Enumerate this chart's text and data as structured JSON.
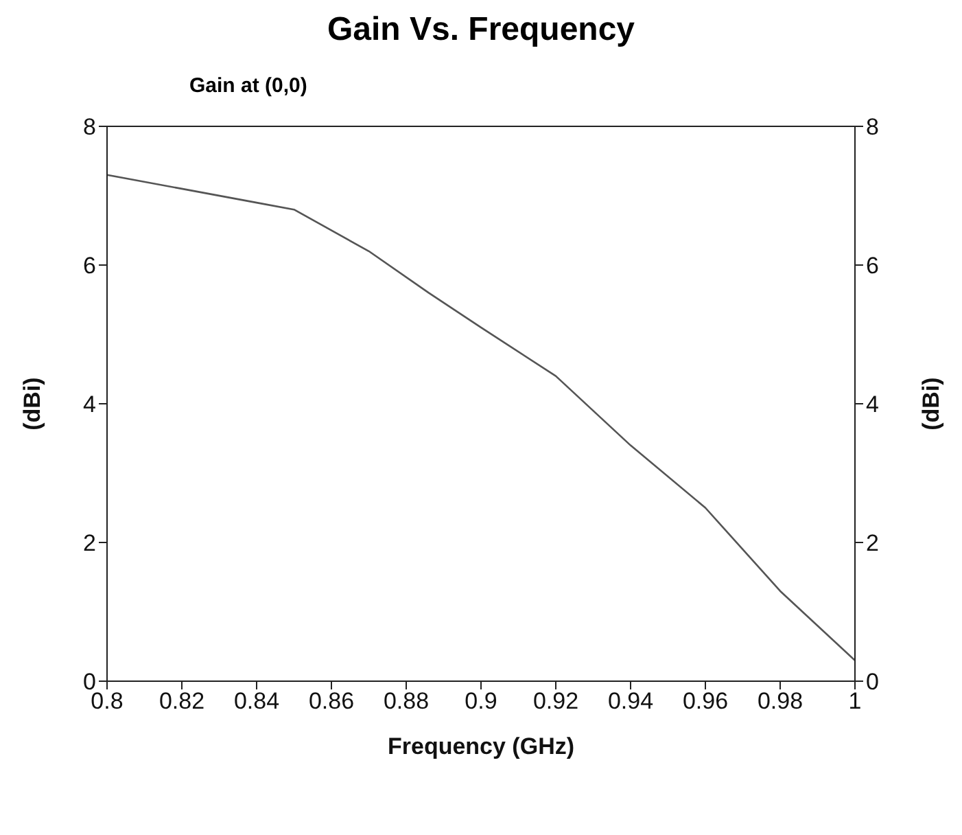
{
  "chart_data": {
    "type": "line",
    "title": "Gain Vs. Frequency",
    "subtitle": "Gain at (0,0)",
    "xlabel": "Frequency (GHz)",
    "ylabel": "(dBi)",
    "y2label": "(dBi)",
    "x": [
      0.8,
      0.82,
      0.84,
      0.85,
      0.87,
      0.886,
      0.9,
      0.92,
      0.94,
      0.96,
      0.98,
      1.0
    ],
    "series": [
      {
        "color": "#555555",
        "values": [
          7.3,
          7.1,
          6.9,
          6.8,
          6.2,
          5.6,
          5.1,
          4.4,
          3.4,
          2.5,
          1.3,
          0.3
        ]
      }
    ],
    "xlim": [
      0.8,
      1.0
    ],
    "xticks": [
      0.8,
      0.82,
      0.84,
      0.86,
      0.88,
      0.9,
      0.92,
      0.94,
      0.96,
      0.98,
      1
    ],
    "ylim": [
      0,
      8
    ],
    "yticks": [
      0,
      2,
      4,
      6,
      8
    ],
    "y2lim": [
      0,
      8
    ],
    "y2ticks": [
      0,
      2,
      4,
      6,
      8
    ],
    "grid": false,
    "legend": false,
    "marker": "none",
    "line_style": "solid"
  }
}
